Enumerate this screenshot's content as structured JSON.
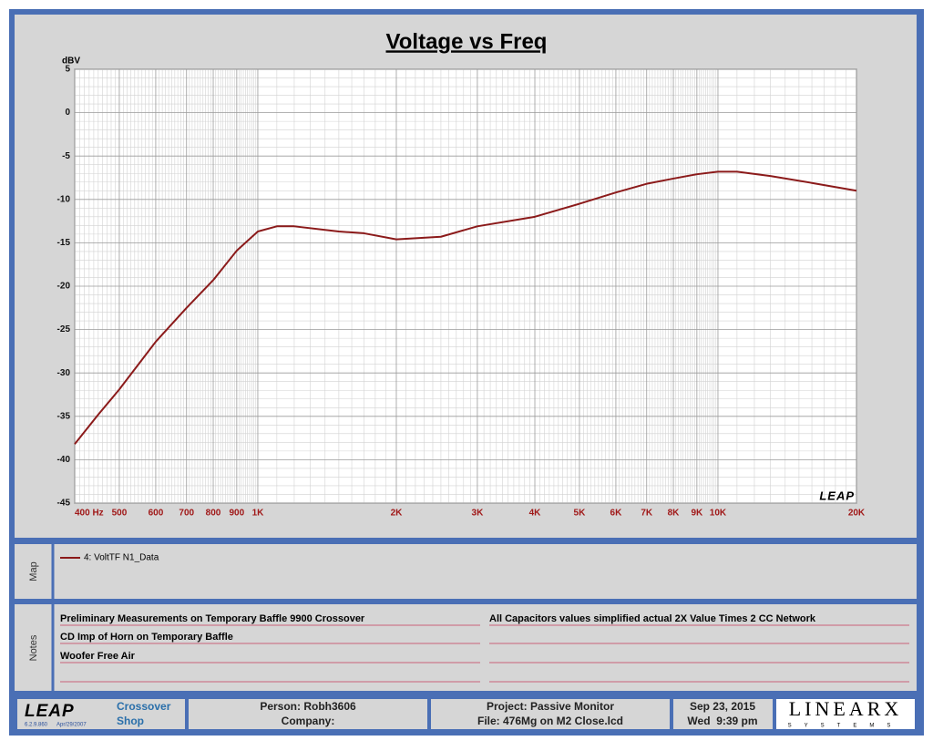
{
  "chart_data": {
    "type": "line",
    "title": "Voltage vs Freq",
    "y_unit": "dBV",
    "xscale": "log",
    "x": [
      400,
      450,
      500,
      600,
      700,
      800,
      900,
      1000,
      1100,
      1200,
      1500,
      1700,
      2000,
      2500,
      3000,
      4000,
      5000,
      6000,
      7000,
      8000,
      9000,
      10000,
      11000,
      13000,
      16000,
      20000
    ],
    "series": [
      {
        "name": "4: VoltTF N1_Data",
        "color": "#8b1a1a",
        "values": [
          -38.2,
          -34.8,
          -31.9,
          -26.4,
          -22.5,
          -19.3,
          -15.9,
          -13.7,
          -13.1,
          -13.1,
          -13.7,
          -13.9,
          -14.6,
          -14.3,
          -13.1,
          -12.0,
          -10.5,
          -9.2,
          -8.2,
          -7.6,
          -7.1,
          -6.8,
          -6.8,
          -7.3,
          -8.1,
          -9.0
        ]
      }
    ],
    "xlim": [
      400,
      20000
    ],
    "xticks": [
      {
        "value": 400,
        "label": "400  Hz"
      },
      500,
      600,
      700,
      800,
      900,
      {
        "value": 1000,
        "label": "1K"
      },
      {
        "value": 2000,
        "label": "2K"
      },
      {
        "value": 3000,
        "label": "3K"
      },
      {
        "value": 4000,
        "label": "4K"
      },
      {
        "value": 5000,
        "label": "5K"
      },
      {
        "value": 6000,
        "label": "6K"
      },
      {
        "value": 7000,
        "label": "7K"
      },
      {
        "value": 8000,
        "label": "8K"
      },
      {
        "value": 9000,
        "label": "9K"
      },
      {
        "value": 10000,
        "label": "10K"
      },
      {
        "value": 20000,
        "label": "20K"
      }
    ],
    "ylim": [
      -45,
      5
    ],
    "yticks": [
      -45,
      -40,
      -35,
      -30,
      -25,
      -20,
      -15,
      -10,
      -5,
      0,
      5
    ],
    "grid": true,
    "watermark": "LEAP"
  },
  "map": {
    "label": "Map"
  },
  "notes": {
    "label": "Notes",
    "left": [
      "Preliminary Measurements on Temporary Baffle  9900 Crossover",
      "CD Imp of Horn on Temporary Baffle",
      "Woofer Free Air"
    ],
    "right": [
      "All Capacitors values simplified actual 2X Value Times 2 CC Network"
    ]
  },
  "footer": {
    "logo": "LEAP",
    "version": "6.2.9.860",
    "build_date": "Apr/29/2007",
    "product": [
      "Crossover",
      "Shop"
    ],
    "person": "Person: Robh3606",
    "company": "Company:",
    "project": "Project: Passive Monitor",
    "file": "File: 476Mg on M2 Close.lcd",
    "date": "Sep 23, 2015",
    "time": "Wed  9:39 pm",
    "brand": "LINEARX",
    "brand_sub": "SYSTEMS"
  }
}
